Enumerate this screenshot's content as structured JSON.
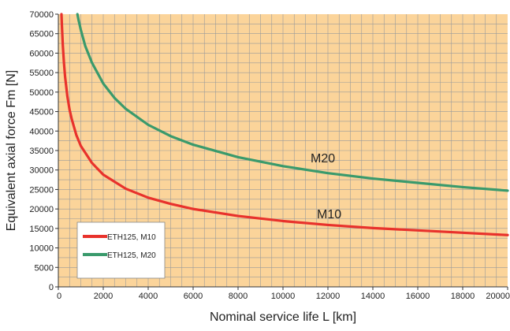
{
  "chart_data": {
    "type": "line",
    "title": "",
    "xlabel": "Nominal service life L [km]",
    "ylabel": "Equivalent axial force Fm [N]",
    "xlim": [
      0,
      20000
    ],
    "ylim": [
      0,
      70000
    ],
    "x_ticks": [
      "0",
      "2000",
      "4000",
      "6000",
      "8000",
      "10000",
      "12000",
      "14000",
      "16000",
      "18000",
      "20000"
    ],
    "y_ticks": [
      "0",
      "5000",
      "10000",
      "15000",
      "20000",
      "25000",
      "30000",
      "35000",
      "40000",
      "45000",
      "50000",
      "55000",
      "60000",
      "65000",
      "70000"
    ],
    "grid": true,
    "legend_position": "bottom-left",
    "background_color": "#fbd49a",
    "grid_color": "#9a9a9a",
    "series": [
      {
        "name": "ETH125, M10",
        "label": "M10",
        "color": "#e8322c",
        "x": [
          140,
          160,
          200,
          250,
          300,
          400,
          500,
          600,
          800,
          1000,
          1500,
          2000,
          3000,
          4000,
          5000,
          6000,
          8000,
          10000,
          12000,
          14000,
          16000,
          18000,
          20000
        ],
        "y": [
          70000,
          67000,
          62000,
          57500,
          54000,
          49000,
          45500,
          43000,
          39000,
          36200,
          31800,
          28800,
          25200,
          22900,
          21300,
          20000,
          18200,
          16900,
          15900,
          15100,
          14500,
          13900,
          13300
        ]
      },
      {
        "name": "ETH125, M20",
        "label": "M20",
        "color": "#3a9a6c",
        "x": [
          850,
          900,
          1000,
          1200,
          1500,
          2000,
          2500,
          3000,
          4000,
          5000,
          6000,
          8000,
          10000,
          12000,
          14000,
          16000,
          18000,
          20000
        ],
        "y": [
          70000,
          68500,
          66000,
          61800,
          57500,
          52200,
          48500,
          45700,
          41600,
          38700,
          36500,
          33300,
          31000,
          29200,
          27800,
          26700,
          25600,
          24700
        ]
      }
    ]
  }
}
